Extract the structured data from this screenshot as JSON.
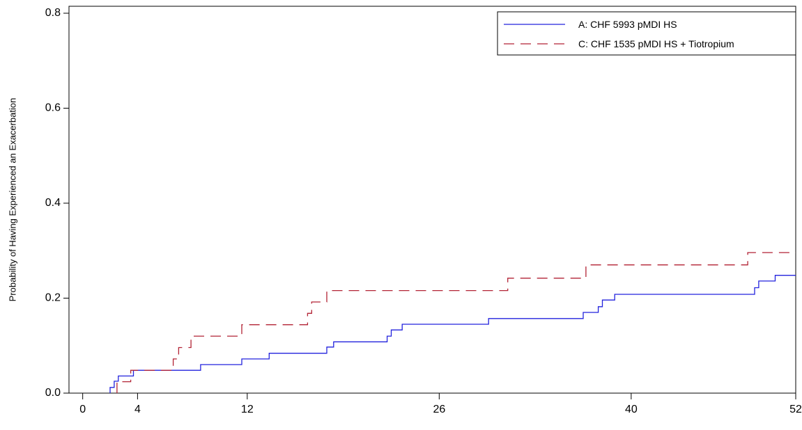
{
  "chart_data": {
    "type": "line",
    "step": true,
    "ylabel": "Probability of Having Experienced an Exacerbation",
    "xlabel": "",
    "xlim": [
      -1,
      52
    ],
    "ylim": [
      0,
      0.8
    ],
    "xticks": [
      0,
      4,
      12,
      26,
      40,
      52
    ],
    "xtick_labels": [
      "0",
      "4",
      "12",
      "26",
      "40",
      "52"
    ],
    "yticks": [
      0,
      0.2,
      0.4,
      0.6,
      0.8
    ],
    "ytick_labels": [
      "0.0",
      "0.2",
      "0.4",
      "0.6",
      "0.8"
    ],
    "legend_position": "top-right",
    "series": [
      {
        "name": "A: CHF 5993 pMDI HS",
        "color": "#2222dd",
        "dash": "solid",
        "points": [
          [
            2.0,
            0.0
          ],
          [
            2.0,
            0.012
          ],
          [
            2.3,
            0.012
          ],
          [
            2.3,
            0.025
          ],
          [
            2.6,
            0.025
          ],
          [
            2.6,
            0.036
          ],
          [
            3.7,
            0.036
          ],
          [
            3.7,
            0.048
          ],
          [
            8.6,
            0.048
          ],
          [
            8.6,
            0.06
          ],
          [
            11.6,
            0.06
          ],
          [
            11.6,
            0.072
          ],
          [
            13.6,
            0.072
          ],
          [
            13.6,
            0.084
          ],
          [
            17.8,
            0.084
          ],
          [
            17.8,
            0.097
          ],
          [
            18.3,
            0.097
          ],
          [
            18.3,
            0.108
          ],
          [
            22.2,
            0.108
          ],
          [
            22.2,
            0.12
          ],
          [
            22.5,
            0.12
          ],
          [
            22.5,
            0.133
          ],
          [
            23.3,
            0.133
          ],
          [
            23.3,
            0.145
          ],
          [
            29.6,
            0.145
          ],
          [
            29.6,
            0.157
          ],
          [
            36.5,
            0.157
          ],
          [
            36.5,
            0.17
          ],
          [
            37.6,
            0.17
          ],
          [
            37.6,
            0.182
          ],
          [
            37.9,
            0.182
          ],
          [
            37.9,
            0.196
          ],
          [
            38.8,
            0.196
          ],
          [
            38.8,
            0.208
          ],
          [
            49.0,
            0.208
          ],
          [
            49.0,
            0.222
          ],
          [
            49.3,
            0.222
          ],
          [
            49.3,
            0.236
          ],
          [
            50.5,
            0.236
          ],
          [
            50.5,
            0.248
          ],
          [
            52.0,
            0.248
          ]
        ]
      },
      {
        "name": "C: CHF 1535 pMDI HS + Tiotropium",
        "color": "#b22234",
        "dash": "dashed",
        "points": [
          [
            2.5,
            0.0
          ],
          [
            2.5,
            0.024
          ],
          [
            3.5,
            0.024
          ],
          [
            3.5,
            0.048
          ],
          [
            6.6,
            0.048
          ],
          [
            6.6,
            0.072
          ],
          [
            7.0,
            0.072
          ],
          [
            7.0,
            0.096
          ],
          [
            7.9,
            0.096
          ],
          [
            7.9,
            0.12
          ],
          [
            11.6,
            0.12
          ],
          [
            11.6,
            0.144
          ],
          [
            16.4,
            0.144
          ],
          [
            16.4,
            0.168
          ],
          [
            16.7,
            0.168
          ],
          [
            16.7,
            0.192
          ],
          [
            17.8,
            0.192
          ],
          [
            17.8,
            0.216
          ],
          [
            31.0,
            0.216
          ],
          [
            31.0,
            0.242
          ],
          [
            36.7,
            0.242
          ],
          [
            36.7,
            0.27
          ],
          [
            48.5,
            0.27
          ],
          [
            48.5,
            0.296
          ],
          [
            52.0,
            0.296
          ]
        ]
      }
    ]
  }
}
